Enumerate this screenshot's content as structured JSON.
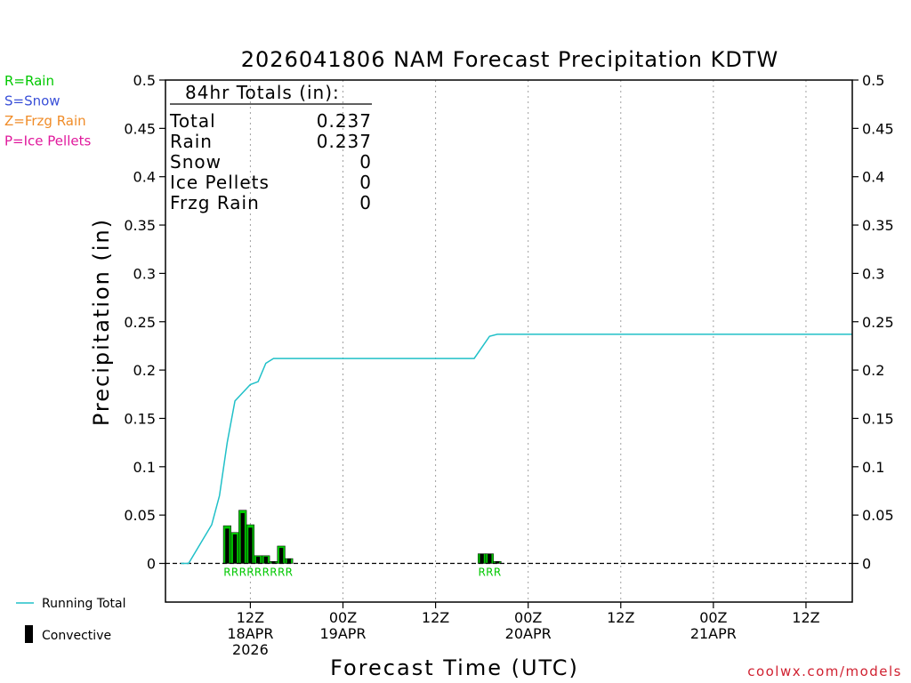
{
  "chart_data": {
    "type": "bar",
    "title": "2026041806 NAM Forecast Precipitation KDTW",
    "xlabel": "Forecast Time (UTC)",
    "ylabel": "Precipitation (in)",
    "ylim": [
      -0.04,
      0.5
    ],
    "yticks": [
      "0",
      "0.05",
      "0.1",
      "0.15",
      "0.2",
      "0.25",
      "0.3",
      "0.35",
      "0.4",
      "0.45",
      "0.5"
    ],
    "ytick_values": [
      0,
      0.05,
      0.1,
      0.15,
      0.2,
      0.25,
      0.3,
      0.35,
      0.4,
      0.45,
      0.5
    ],
    "xlim_hours": [
      -5,
      84
    ],
    "xticks": [
      {
        "hour": 6,
        "lines": [
          "12Z",
          "18APR",
          "2026"
        ]
      },
      {
        "hour": 18,
        "lines": [
          "00Z",
          "19APR"
        ]
      },
      {
        "hour": 30,
        "lines": [
          "12Z"
        ]
      },
      {
        "hour": 42,
        "lines": [
          "00Z",
          "20APR"
        ]
      },
      {
        "hour": 54,
        "lines": [
          "12Z"
        ]
      },
      {
        "hour": 66,
        "lines": [
          "00Z",
          "21APR"
        ]
      },
      {
        "hour": 78,
        "lines": [
          "12Z"
        ]
      }
    ],
    "bars": [
      {
        "hour": 3,
        "total": 0.039,
        "convective": 0.036,
        "type": "R"
      },
      {
        "hour": 4,
        "total": 0.032,
        "convective": 0.03,
        "type": "R"
      },
      {
        "hour": 5,
        "total": 0.055,
        "convective": 0.052,
        "type": "R"
      },
      {
        "hour": 6,
        "total": 0.04,
        "convective": 0.037,
        "type": "R"
      },
      {
        "hour": 7,
        "total": 0.008,
        "convective": 0.007,
        "type": "R"
      },
      {
        "hour": 8,
        "total": 0.008,
        "convective": 0.007,
        "type": "R"
      },
      {
        "hour": 9,
        "total": 0.002,
        "convective": 0.002,
        "type": "R"
      },
      {
        "hour": 10,
        "total": 0.018,
        "convective": 0.016,
        "type": "R"
      },
      {
        "hour": 11,
        "total": 0.005,
        "convective": 0.005,
        "type": "R"
      },
      {
        "hour": 36,
        "total": 0.01,
        "convective": 0.01,
        "type": "R"
      },
      {
        "hour": 37,
        "total": 0.01,
        "convective": 0.01,
        "type": "R"
      },
      {
        "hour": 38,
        "total": 0.002,
        "convective": 0.002,
        "type": "R"
      }
    ],
    "running_total": [
      {
        "hour": -3,
        "value": 0
      },
      {
        "hour": -2,
        "value": 0
      },
      {
        "hour": 1,
        "value": 0.04
      },
      {
        "hour": 2,
        "value": 0.07
      },
      {
        "hour": 3,
        "value": 0.125
      },
      {
        "hour": 4,
        "value": 0.168
      },
      {
        "hour": 6,
        "value": 0.185
      },
      {
        "hour": 7,
        "value": 0.188
      },
      {
        "hour": 8,
        "value": 0.207
      },
      {
        "hour": 9,
        "value": 0.212
      },
      {
        "hour": 35,
        "value": 0.212
      },
      {
        "hour": 37,
        "value": 0.235
      },
      {
        "hour": 38,
        "value": 0.237
      },
      {
        "hour": 84,
        "value": 0.237
      }
    ],
    "colors": {
      "rain": "#00c800",
      "convective": "#000000",
      "running_total": "#20c0c8",
      "grid": "#a0a0a0"
    },
    "grid": "vertical-dotted",
    "totals_box": {
      "heading": "84hr Totals (in):",
      "rows": [
        {
          "label": "Total",
          "value": "0.237"
        },
        {
          "label": "Rain",
          "value": "0.237"
        },
        {
          "label": "Snow",
          "value": "0"
        },
        {
          "label": "Ice Pellets",
          "value": "0"
        },
        {
          "label": "Frzg Rain",
          "value": "0"
        }
      ]
    }
  },
  "type_legend": [
    {
      "text": "R=Rain",
      "color": "#00c800"
    },
    {
      "text": "S=Snow",
      "color": "#3a50d8"
    },
    {
      "text": "Z=Frzg Rain",
      "color": "#f08c28"
    },
    {
      "text": "P=Ice Pellets",
      "color": "#e0189c"
    }
  ],
  "series_legend": {
    "running_total": "Running Total",
    "convective": "Convective"
  },
  "credit": "coolwx.com/models",
  "credit_color": "#d02030"
}
